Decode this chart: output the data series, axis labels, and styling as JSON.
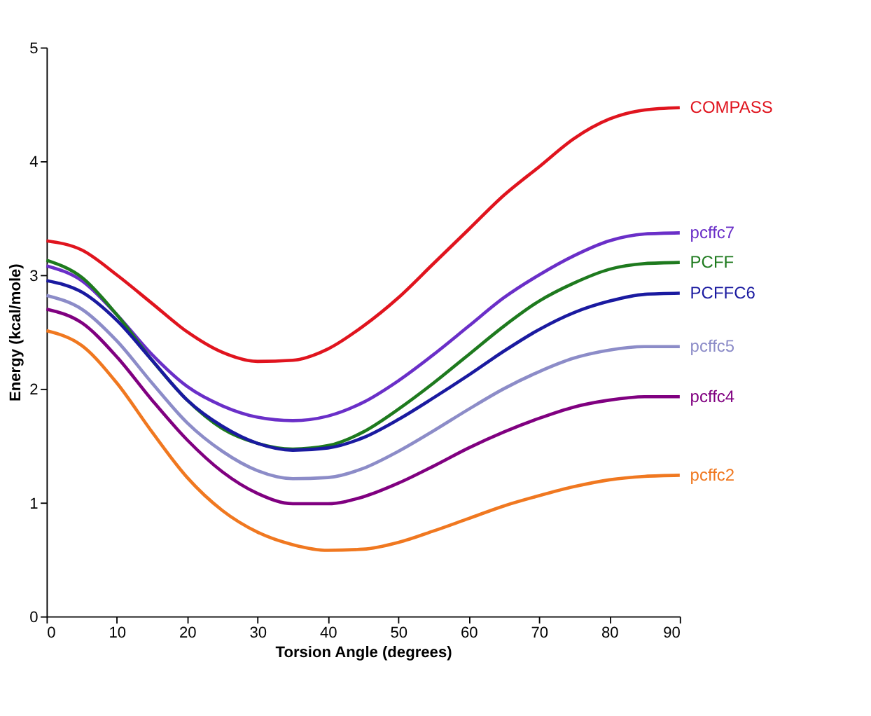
{
  "chart_data": {
    "type": "line",
    "xlabel": "Torsion Angle (degrees)",
    "ylabel": "Energy (kcal/mole)",
    "x": [
      0,
      5,
      10,
      15,
      20,
      25,
      30,
      35,
      40,
      45,
      50,
      55,
      60,
      65,
      70,
      75,
      80,
      85,
      90
    ],
    "xlim": [
      0,
      90
    ],
    "xticks": [
      0,
      10,
      20,
      30,
      40,
      50,
      60,
      70,
      80,
      90
    ],
    "ylim": [
      0,
      5
    ],
    "yticks": [
      0,
      1,
      2,
      3,
      4,
      5
    ],
    "grid": false,
    "legend": false,
    "marker": "none",
    "line_style": "solid",
    "series": [
      {
        "name": "COMPASS",
        "color": "#e0141e",
        "values": [
          3.3,
          3.22,
          3.0,
          2.75,
          2.5,
          2.32,
          2.24,
          2.25,
          2.35,
          2.55,
          2.8,
          3.1,
          3.4,
          3.7,
          3.95,
          4.2,
          4.37,
          4.45,
          4.47
        ]
      },
      {
        "name": "pcffc7",
        "color": "#6a2fc8",
        "values": [
          3.08,
          2.95,
          2.65,
          2.3,
          2.02,
          1.85,
          1.75,
          1.72,
          1.76,
          1.88,
          2.07,
          2.3,
          2.55,
          2.8,
          3.0,
          3.17,
          3.3,
          3.36,
          3.37
        ]
      },
      {
        "name": "PCFF",
        "color": "#1e7a1e",
        "values": [
          3.13,
          2.98,
          2.65,
          2.25,
          1.9,
          1.65,
          1.52,
          1.47,
          1.5,
          1.62,
          1.82,
          2.05,
          2.3,
          2.55,
          2.77,
          2.93,
          3.05,
          3.1,
          3.11
        ]
      },
      {
        "name": "PCFFC6",
        "color": "#1a1aa0",
        "values": [
          2.95,
          2.85,
          2.6,
          2.25,
          1.9,
          1.67,
          1.52,
          1.46,
          1.48,
          1.57,
          1.73,
          1.92,
          2.12,
          2.33,
          2.52,
          2.67,
          2.77,
          2.83,
          2.84
        ]
      },
      {
        "name": "pcffc5",
        "color": "#8c8cc8",
        "values": [
          2.82,
          2.7,
          2.42,
          2.05,
          1.7,
          1.45,
          1.28,
          1.21,
          1.22,
          1.3,
          1.45,
          1.63,
          1.82,
          2.0,
          2.15,
          2.27,
          2.34,
          2.37,
          2.37
        ]
      },
      {
        "name": "pcffc4",
        "color": "#800080",
        "values": [
          2.7,
          2.58,
          2.28,
          1.9,
          1.55,
          1.27,
          1.08,
          0.99,
          0.99,
          1.05,
          1.17,
          1.32,
          1.48,
          1.62,
          1.74,
          1.84,
          1.9,
          1.93,
          1.93
        ]
      },
      {
        "name": "pcffc2",
        "color": "#f07820",
        "values": [
          2.51,
          2.38,
          2.05,
          1.62,
          1.22,
          0.93,
          0.74,
          0.63,
          0.58,
          0.59,
          0.65,
          0.75,
          0.86,
          0.97,
          1.06,
          1.14,
          1.2,
          1.23,
          1.24
        ]
      }
    ]
  }
}
